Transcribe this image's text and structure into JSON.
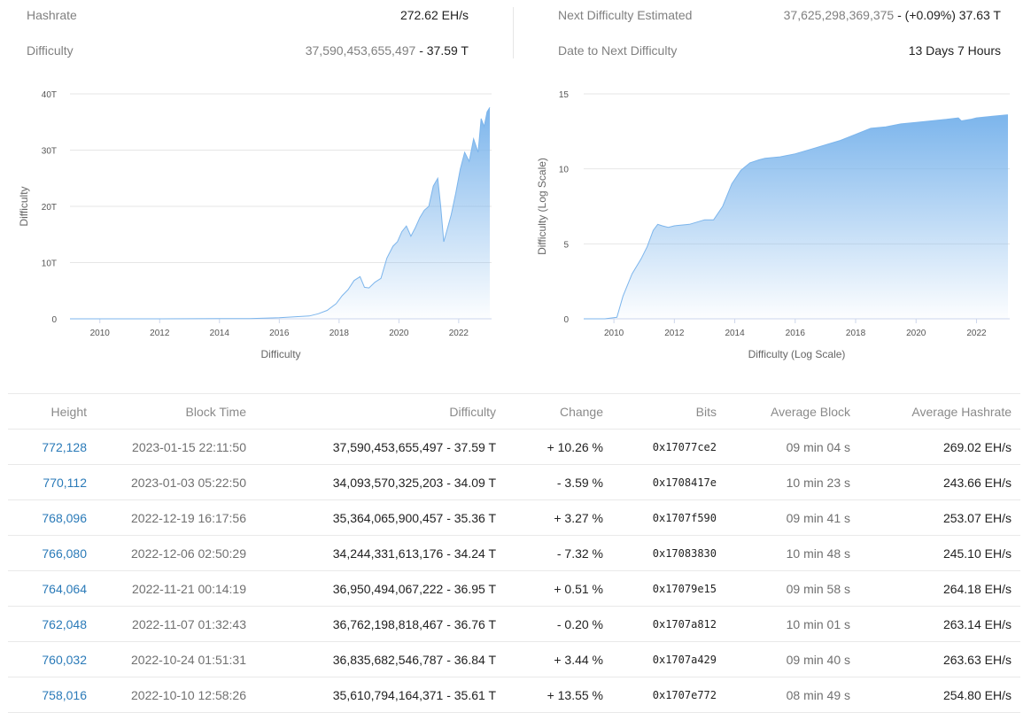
{
  "stats": {
    "hashrate": {
      "label": "Hashrate",
      "value": "272.62 EH/s"
    },
    "difficulty": {
      "label": "Difficulty",
      "value_full": "37,590,453,655,497",
      "value_sep": " - ",
      "value_short": "37.59 T"
    },
    "next_difficulty": {
      "label": "Next Difficulty Estimated",
      "value_full": "37,625,298,369,375",
      "value_sep": " - ",
      "value_change": "(+0.09%)",
      "value_short": "37.63 T"
    },
    "date_to_next": {
      "label": "Date to Next Difficulty",
      "value": "13 Days 7 Hours"
    }
  },
  "chart_data": [
    {
      "type": "area",
      "title": "",
      "xlabel": "Difficulty",
      "ylabel": "Difficulty",
      "x_ticks": [
        "2010",
        "2012",
        "2014",
        "2016",
        "2018",
        "2020",
        "2022"
      ],
      "y_ticks": [
        "0",
        "10T",
        "20T",
        "30T",
        "40T"
      ],
      "ylim": [
        0,
        40
      ],
      "xlim": [
        2009.0,
        2023.1
      ],
      "grid": true,
      "color": "#7cb5ec",
      "x": [
        2009.0,
        2010.0,
        2011.0,
        2012.0,
        2013.0,
        2014.0,
        2015.0,
        2016.0,
        2016.5,
        2017.0,
        2017.3,
        2017.6,
        2017.9,
        2018.1,
        2018.3,
        2018.5,
        2018.7,
        2018.85,
        2019.0,
        2019.2,
        2019.4,
        2019.6,
        2019.8,
        2019.95,
        2020.1,
        2020.25,
        2020.4,
        2020.55,
        2020.7,
        2020.85,
        2021.0,
        2021.15,
        2021.3,
        2021.4,
        2021.5,
        2021.6,
        2021.75,
        2021.9,
        2022.05,
        2022.2,
        2022.35,
        2022.5,
        2022.65,
        2022.75,
        2022.85,
        2022.95,
        2023.04
      ],
      "values": [
        0,
        0,
        0,
        0.001,
        0.01,
        0.03,
        0.05,
        0.2,
        0.35,
        0.5,
        0.9,
        1.5,
        2.7,
        4.1,
        5.2,
        6.8,
        7.5,
        5.6,
        5.5,
        6.5,
        7.2,
        10.8,
        12.9,
        13.7,
        15.5,
        16.5,
        14.7,
        16.2,
        18.0,
        19.3,
        20.0,
        23.6,
        25.0,
        19.9,
        13.7,
        15.6,
        18.5,
        22.3,
        26.6,
        29.6,
        28.0,
        32.0,
        29.6,
        35.6,
        34.2,
        36.8,
        37.59
      ]
    },
    {
      "type": "area",
      "title": "",
      "xlabel": "Difficulty (Log Scale)",
      "ylabel": "Difficulty (Log Scale)",
      "x_ticks": [
        "2010",
        "2012",
        "2014",
        "2016",
        "2018",
        "2020",
        "2022"
      ],
      "y_ticks": [
        "0",
        "5",
        "10",
        "15"
      ],
      "ylim": [
        0,
        15
      ],
      "xlim": [
        2009.0,
        2023.1
      ],
      "grid": true,
      "color": "#7cb5ec",
      "x": [
        2009.0,
        2009.7,
        2010.1,
        2010.3,
        2010.6,
        2010.9,
        2011.1,
        2011.3,
        2011.45,
        2011.6,
        2011.8,
        2012.0,
        2012.5,
        2013.0,
        2013.3,
        2013.6,
        2013.9,
        2014.2,
        2014.5,
        2014.8,
        2015.0,
        2015.5,
        2016.0,
        2016.5,
        2017.0,
        2017.5,
        2018.0,
        2018.5,
        2019.0,
        2019.5,
        2020.0,
        2020.5,
        2021.0,
        2021.4,
        2021.5,
        2021.8,
        2022.0,
        2022.5,
        2023.0,
        2023.04
      ],
      "values": [
        0,
        0,
        0.1,
        1.5,
        3.0,
        4.0,
        4.8,
        5.9,
        6.3,
        6.2,
        6.1,
        6.2,
        6.3,
        6.6,
        6.6,
        7.5,
        9.0,
        9.9,
        10.4,
        10.6,
        10.7,
        10.8,
        11.0,
        11.3,
        11.6,
        11.9,
        12.3,
        12.7,
        12.8,
        13.0,
        13.1,
        13.2,
        13.3,
        13.4,
        13.2,
        13.3,
        13.4,
        13.5,
        13.6,
        13.6
      ]
    }
  ],
  "table": {
    "columns": [
      "Height",
      "Block Time",
      "Difficulty",
      "Change",
      "Bits",
      "Average Block",
      "Average Hashrate"
    ],
    "rows": [
      {
        "height": "772,128",
        "time": "2023-01-15 22:11:50",
        "difficulty": "37,590,453,655,497 - 37.59 T",
        "change": "+ 10.26 %",
        "change_dir": "pos",
        "bits": "0x17077ce2",
        "avg_block": "09 min 04 s",
        "avg_hashrate": "269.02 EH/s"
      },
      {
        "height": "770,112",
        "time": "2023-01-03 05:22:50",
        "difficulty": "34,093,570,325,203 - 34.09 T",
        "change": "- 3.59 %",
        "change_dir": "neg",
        "bits": "0x1708417e",
        "avg_block": "10 min 23 s",
        "avg_hashrate": "243.66 EH/s"
      },
      {
        "height": "768,096",
        "time": "2022-12-19 16:17:56",
        "difficulty": "35,364,065,900,457 - 35.36 T",
        "change": "+ 3.27 %",
        "change_dir": "pos",
        "bits": "0x1707f590",
        "avg_block": "09 min 41 s",
        "avg_hashrate": "253.07 EH/s"
      },
      {
        "height": "766,080",
        "time": "2022-12-06 02:50:29",
        "difficulty": "34,244,331,613,176 - 34.24 T",
        "change": "- 7.32 %",
        "change_dir": "neg",
        "bits": "0x17083830",
        "avg_block": "10 min 48 s",
        "avg_hashrate": "245.10 EH/s"
      },
      {
        "height": "764,064",
        "time": "2022-11-21 00:14:19",
        "difficulty": "36,950,494,067,222 - 36.95 T",
        "change": "+ 0.51 %",
        "change_dir": "pos",
        "bits": "0x17079e15",
        "avg_block": "09 min 58 s",
        "avg_hashrate": "264.18 EH/s"
      },
      {
        "height": "762,048",
        "time": "2022-11-07 01:32:43",
        "difficulty": "36,762,198,818,467 - 36.76 T",
        "change": "- 0.20 %",
        "change_dir": "neg",
        "bits": "0x1707a812",
        "avg_block": "10 min 01 s",
        "avg_hashrate": "263.14 EH/s"
      },
      {
        "height": "760,032",
        "time": "2022-10-24 01:51:31",
        "difficulty": "36,835,682,546,787 - 36.84 T",
        "change": "+ 3.44 %",
        "change_dir": "pos",
        "bits": "0x1707a429",
        "avg_block": "09 min 40 s",
        "avg_hashrate": "263.63 EH/s"
      },
      {
        "height": "758,016",
        "time": "2022-10-10 12:58:26",
        "difficulty": "35,610,794,164,371 - 35.61 T",
        "change": "+ 13.55 %",
        "change_dir": "pos",
        "bits": "0x1707e772",
        "avg_block": "08 min 49 s",
        "avg_hashrate": "254.80 EH/s"
      }
    ]
  }
}
